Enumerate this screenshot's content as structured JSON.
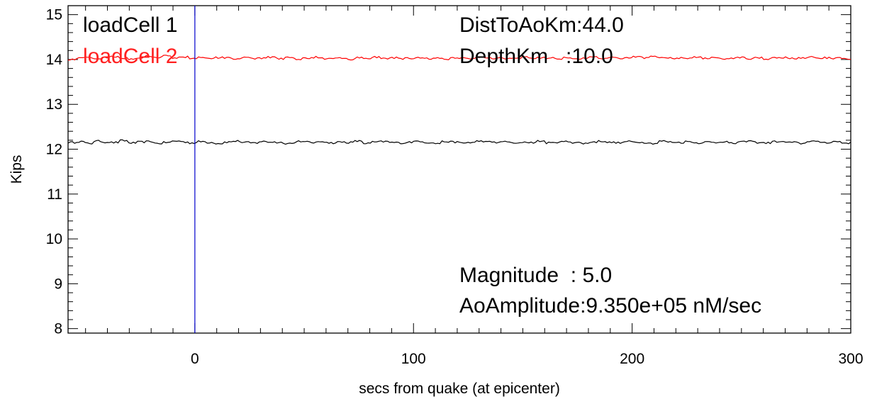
{
  "chart_data": {
    "type": "line",
    "xlabel": "secs from quake (at epicenter)",
    "ylabel": "Kips",
    "xlim": [
      -58,
      300
    ],
    "ylim": [
      7.9,
      15.2
    ],
    "xticks": [
      0,
      100,
      200,
      300
    ],
    "xtick_labels": [
      "0",
      "100",
      "200",
      "300"
    ],
    "yticks": [
      8,
      9,
      10,
      11,
      12,
      13,
      14,
      15
    ],
    "ytick_labels": [
      "8",
      "9",
      "10",
      "11",
      "12",
      "13",
      "14",
      "15"
    ],
    "grid": false,
    "legend_placement": "top-left",
    "series": [
      {
        "name": "loadCell 1",
        "color": "#000000",
        "x_start": -58,
        "x_end": 300,
        "level": 12.15,
        "noise": 0.04,
        "values": [
          12.15,
          12.17,
          12.13,
          12.18,
          12.16,
          12.15,
          12.19,
          12.14,
          12.16,
          12.17,
          12.13,
          12.15,
          12.18,
          12.16,
          12.14,
          12.17,
          12.15,
          12.13,
          12.16,
          12.18,
          12.15,
          12.14,
          12.17,
          12.16,
          12.15,
          12.13,
          12.18,
          12.16,
          12.15,
          12.17,
          12.14,
          12.16,
          12.15,
          12.18,
          12.13,
          12.16,
          12.17,
          12.15,
          12.14,
          12.16,
          12.18,
          12.15,
          12.13,
          12.17,
          12.16,
          12.14,
          12.15,
          12.18,
          12.16,
          12.15,
          12.17,
          12.13,
          12.16,
          12.15,
          12.18,
          12.14,
          12.16,
          12.17,
          12.15,
          12.13,
          12.16,
          12.18,
          12.15,
          12.14,
          12.17,
          12.16,
          12.15,
          12.13,
          12.18,
          12.16,
          12.15,
          12.17,
          12.14,
          12.16,
          12.15,
          12.17,
          12.13,
          12.16,
          12.18,
          12.15,
          12.14,
          12.17,
          12.16,
          12.15,
          12.13,
          12.18,
          12.16,
          12.15,
          12.17,
          12.14
        ]
      },
      {
        "name": "loadCell 2",
        "color": "#ff0000",
        "x_start": -58,
        "x_end": 300,
        "level": 14.03,
        "noise": 0.04,
        "values": [
          14.0,
          14.03,
          14.05,
          14.02,
          14.04,
          14.06,
          14.03,
          14.01,
          14.04,
          14.07,
          14.05,
          14.08,
          14.04,
          14.06,
          14.03,
          14.05,
          14.02,
          14.04,
          14.03,
          14.01,
          14.04,
          14.02,
          14.03,
          14.05,
          14.02,
          14.04,
          14.01,
          14.03,
          14.05,
          14.02,
          14.04,
          14.03,
          14.01,
          14.04,
          14.02,
          14.05,
          14.03,
          14.04,
          14.02,
          14.03,
          14.05,
          14.02,
          14.04,
          14.01,
          14.03,
          14.04,
          14.02,
          14.05,
          14.03,
          14.04,
          14.02,
          14.03,
          14.05,
          14.02,
          14.04,
          14.03,
          14.01,
          14.04,
          14.02,
          14.03,
          14.05,
          14.02,
          14.04,
          14.03,
          14.05,
          14.06,
          14.04,
          14.07,
          14.05,
          14.03,
          14.04,
          14.02,
          14.05,
          14.03,
          14.04,
          14.02,
          14.03,
          14.05,
          14.02,
          14.04,
          14.01,
          14.03,
          14.04,
          14.02,
          14.03,
          14.05,
          14.02,
          14.04,
          14.03,
          14.01
        ]
      }
    ],
    "vline": {
      "x": 0,
      "color": "#0000cc"
    },
    "annotations": {
      "legend1": "loadCell 1",
      "legend2": "loadCell 2",
      "dist": "DistToAoKm:44.0",
      "depth": "DepthKm   :10.0",
      "magnitude": "Magnitude  : 5.0",
      "amplitude": "AoAmplitude:9.350e+05 nM/sec"
    }
  }
}
